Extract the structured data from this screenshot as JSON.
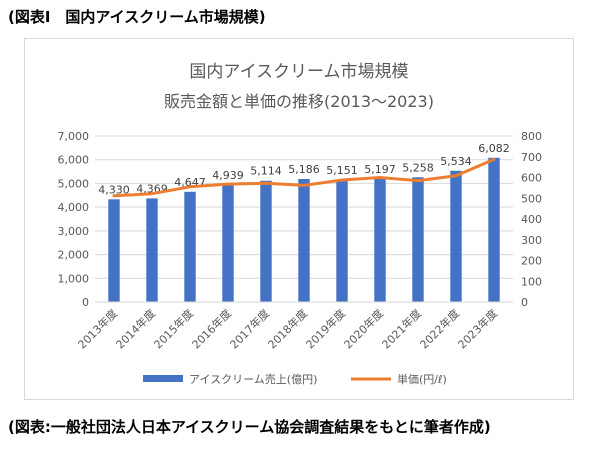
{
  "heading": "(図表Ⅰ　国内アイスクリーム市場規模)",
  "caption": "(図表:一般社団法人日本アイスクリーム協会調査結果をもとに筆者作成)",
  "colors": {
    "bar": "#4472c4",
    "line": "#ed7d31",
    "grid": "#d9d9d9",
    "axis_text": "#595959"
  },
  "chart_data": {
    "type": "bar",
    "title": "国内アイスクリーム市場規模",
    "subtitle": "販売金額と単価の推移(2013〜2023)",
    "categories": [
      "2013年度",
      "2014年度",
      "2015年度",
      "2016年度",
      "2017年度",
      "2018年度",
      "2019年度",
      "2020年度",
      "2021年度",
      "2022年度",
      "2023年度"
    ],
    "series": [
      {
        "name": "アイスクリーム売上(億円)",
        "type": "bar",
        "axis": "left",
        "values": [
          4330,
          4369,
          4647,
          4939,
          5114,
          5186,
          5151,
          5197,
          5258,
          5534,
          6082
        ],
        "labels": [
          "4,330",
          "4,369",
          "4,647",
          "4,939",
          "5,114",
          "5,186",
          "5,151",
          "5,197",
          "5,258",
          "5,534",
          "6,082"
        ]
      },
      {
        "name": "単価(円/ℓ)",
        "type": "line",
        "axis": "right",
        "values": [
          512,
          522,
          555,
          568,
          572,
          562,
          588,
          600,
          585,
          608,
          687
        ]
      }
    ],
    "ylim_left": [
      0,
      7000
    ],
    "ylim_right": [
      0,
      800
    ],
    "yticks_left": [
      "0",
      "1,000",
      "2,000",
      "3,000",
      "4,000",
      "5,000",
      "6,000",
      "7,000"
    ],
    "yticks_right": [
      "0",
      "100",
      "200",
      "300",
      "400",
      "500",
      "600",
      "700",
      "800"
    ],
    "grid": true,
    "legend_position": "bottom"
  }
}
